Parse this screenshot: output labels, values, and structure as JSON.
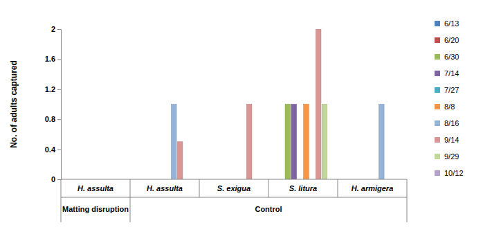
{
  "chart_data": {
    "type": "bar",
    "ylabel": "No. of adults captured",
    "categories": [
      [
        "Matting disruption",
        "H. assulta"
      ],
      [
        "Control",
        "H. assulta"
      ],
      [
        "Control",
        "S. exigua"
      ],
      [
        "Control",
        "S. litura"
      ],
      [
        "Control",
        "H. armigera"
      ]
    ],
    "series": [
      {
        "name": "6/13",
        "color": "#4f81bd",
        "values": [
          0,
          0,
          0,
          0,
          0
        ]
      },
      {
        "name": "6/20",
        "color": "#c0504d",
        "values": [
          0,
          0,
          0,
          0,
          0
        ]
      },
      {
        "name": "6/30",
        "color": "#9bbb59",
        "values": [
          0,
          0,
          0,
          1,
          0
        ]
      },
      {
        "name": "7/14",
        "color": "#8064a2",
        "values": [
          0,
          0,
          0,
          1,
          0
        ]
      },
      {
        "name": "7/27",
        "color": "#4bacc6",
        "values": [
          0,
          0,
          0,
          0,
          0
        ]
      },
      {
        "name": "8/8",
        "color": "#f79646",
        "values": [
          0,
          0,
          0,
          1,
          0
        ]
      },
      {
        "name": "8/16",
        "color": "#95b3d7",
        "values": [
          0,
          1,
          0,
          0,
          1
        ]
      },
      {
        "name": "9/14",
        "color": "#d99694",
        "values": [
          0,
          0.5,
          1,
          2,
          0
        ]
      },
      {
        "name": "9/29",
        "color": "#c3d69b",
        "values": [
          0,
          0,
          0,
          1,
          0
        ]
      },
      {
        "name": "10/12",
        "color": "#b3a2c7",
        "values": [
          0,
          0,
          0,
          0,
          0
        ]
      }
    ],
    "ylim": [
      0,
      2
    ],
    "yticks": [
      0,
      0.4,
      0.8,
      1.2,
      1.6,
      2
    ],
    "grid": false,
    "legend": "right"
  }
}
